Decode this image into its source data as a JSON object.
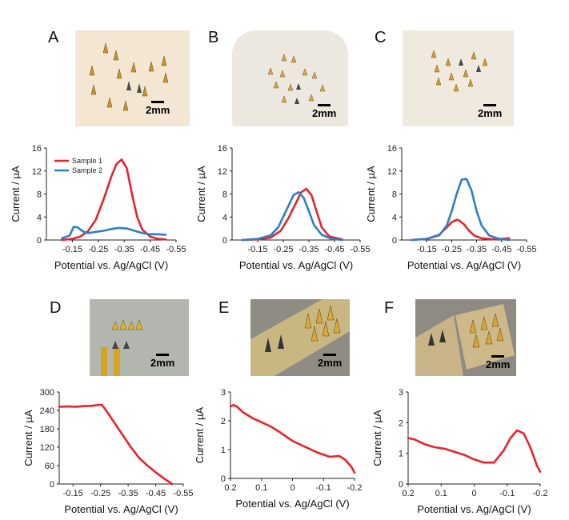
{
  "panels": {
    "A": {
      "letter": "A",
      "scale": "2mm"
    },
    "B": {
      "letter": "B",
      "scale": "2mm"
    },
    "C": {
      "letter": "C",
      "scale": "2mm"
    },
    "D": {
      "letter": "D",
      "scale": "2mm"
    },
    "E": {
      "letter": "E",
      "scale": "2mm"
    },
    "F": {
      "letter": "F",
      "scale": "2mm"
    }
  },
  "colors": {
    "sample1": "#e8232a",
    "sample2": "#2a7fc9"
  },
  "chart_data": [
    {
      "id": "A",
      "type": "line",
      "ylabel": "Current / µA",
      "xlabel": "Potential vs. Ag/AgCl (V)",
      "xlim": [
        -0.05,
        -0.55
      ],
      "ylim": [
        0,
        16
      ],
      "xticks": [
        "-0.15",
        "-0.25",
        "-0.35",
        "-0.45",
        "-0.55"
      ],
      "xtick_values": [
        -0.15,
        -0.25,
        -0.35,
        -0.45,
        -0.55
      ],
      "yticks": [
        "0",
        "4",
        "8",
        "12",
        "16"
      ],
      "ytick_values": [
        0,
        4,
        8,
        12,
        16
      ],
      "legend": [
        "Sample 1",
        "Sample 2"
      ],
      "series": [
        {
          "name": "Sample 1",
          "color": "#e8232a",
          "x": [
            -0.11,
            -0.15,
            -0.18,
            -0.21,
            -0.24,
            -0.27,
            -0.3,
            -0.32,
            -0.34,
            -0.36,
            -0.38,
            -0.4,
            -0.42,
            -0.45,
            -0.48,
            -0.51
          ],
          "y": [
            0,
            0.2,
            0.6,
            1.5,
            3.5,
            7,
            11,
            13.2,
            14,
            12.5,
            8,
            4,
            1.8,
            0.6,
            0.2,
            0.1
          ]
        },
        {
          "name": "Sample 2",
          "color": "#2a7fc9",
          "x": [
            -0.11,
            -0.14,
            -0.155,
            -0.17,
            -0.19,
            -0.21,
            -0.24,
            -0.27,
            -0.3,
            -0.33,
            -0.36,
            -0.39,
            -0.42,
            -0.45,
            -0.48,
            -0.51
          ],
          "y": [
            0.3,
            0.8,
            2.3,
            2.2,
            1.5,
            1.2,
            1.4,
            1.6,
            1.9,
            2.1,
            2.0,
            1.6,
            1.2,
            1.0,
            1.0,
            0.9
          ]
        }
      ]
    },
    {
      "id": "B",
      "type": "line",
      "ylabel": "Current / µA",
      "xlabel": "Potential vs. Ag/AgCl (V)",
      "xlim": [
        -0.05,
        -0.55
      ],
      "ylim": [
        0,
        16
      ],
      "xticks": [
        "-0.15",
        "-0.25",
        "-0.35",
        "-0.45",
        "-0.55"
      ],
      "xtick_values": [
        -0.15,
        -0.25,
        -0.35,
        -0.45,
        -0.55
      ],
      "yticks": [
        "0",
        "4",
        "8",
        "12",
        "16"
      ],
      "ytick_values": [
        0,
        4,
        8,
        12,
        16
      ],
      "series": [
        {
          "name": "Sample 1",
          "color": "#e8232a",
          "x": [
            -0.09,
            -0.15,
            -0.2,
            -0.24,
            -0.27,
            -0.3,
            -0.32,
            -0.34,
            -0.36,
            -0.38,
            -0.4,
            -0.43,
            -0.48
          ],
          "y": [
            0,
            0.1,
            0.4,
            1.6,
            3.8,
            6.5,
            8.3,
            8.9,
            7.8,
            5,
            2.2,
            0.6,
            0.1
          ]
        },
        {
          "name": "Sample 2",
          "color": "#2a7fc9",
          "x": [
            -0.09,
            -0.15,
            -0.2,
            -0.23,
            -0.26,
            -0.29,
            -0.31,
            -0.33,
            -0.35,
            -0.37,
            -0.4,
            -0.44,
            -0.48
          ],
          "y": [
            0,
            0.2,
            0.8,
            2.2,
            5,
            7.8,
            8.3,
            7.3,
            5,
            2.6,
            0.9,
            0.2,
            0
          ]
        }
      ]
    },
    {
      "id": "C",
      "type": "line",
      "ylabel": "Current / µA",
      "xlabel": "Potential vs. Ag/AgCl (V)",
      "xlim": [
        -0.05,
        -0.55
      ],
      "ylim": [
        0,
        16
      ],
      "xticks": [
        "-0.15",
        "-0.25",
        "-0.35",
        "-0.45",
        "-0.55"
      ],
      "xtick_values": [
        -0.15,
        -0.25,
        -0.35,
        -0.45,
        -0.55
      ],
      "yticks": [
        "0",
        "4",
        "8",
        "12",
        "16"
      ],
      "ytick_values": [
        0,
        4,
        8,
        12,
        16
      ],
      "series": [
        {
          "name": "Sample 1",
          "color": "#e8232a",
          "x": [
            -0.09,
            -0.15,
            -0.2,
            -0.23,
            -0.25,
            -0.27,
            -0.28,
            -0.3,
            -0.32,
            -0.34,
            -0.37,
            -0.42,
            -0.48
          ],
          "y": [
            0,
            0.2,
            0.9,
            2.2,
            3.1,
            3.5,
            3.4,
            2.7,
            1.6,
            0.8,
            0.3,
            0.1,
            0.3
          ]
        },
        {
          "name": "Sample 2",
          "color": "#2a7fc9",
          "x": [
            -0.09,
            -0.15,
            -0.2,
            -0.23,
            -0.25,
            -0.27,
            -0.29,
            -0.31,
            -0.33,
            -0.35,
            -0.37,
            -0.4,
            -0.44,
            -0.48
          ],
          "y": [
            0,
            0.2,
            0.8,
            2.5,
            5,
            8,
            10.5,
            10.6,
            8.5,
            5,
            2.5,
            0.8,
            0.2,
            0
          ]
        }
      ]
    },
    {
      "id": "D",
      "type": "line",
      "ylabel": "Current / µA",
      "xlabel": "Potential vs. Ag/AgCl (V)",
      "xlim": [
        -0.1,
        -0.55
      ],
      "ylim": [
        0,
        300
      ],
      "xticks": [
        "-0.15",
        "-0.25",
        "-0.35",
        "-0.45",
        "-0.55"
      ],
      "xtick_values": [
        -0.15,
        -0.25,
        -0.35,
        -0.45,
        -0.55
      ],
      "yticks": [
        "0",
        "60",
        "120",
        "180",
        "240",
        "300"
      ],
      "ytick_values": [
        0,
        60,
        120,
        180,
        240,
        300
      ],
      "series": [
        {
          "name": "",
          "color": "#e8232a",
          "x": [
            -0.1,
            -0.13,
            -0.16,
            -0.19,
            -0.22,
            -0.24,
            -0.255,
            -0.27,
            -0.3,
            -0.33,
            -0.36,
            -0.39,
            -0.42,
            -0.45,
            -0.48,
            -0.51
          ],
          "y": [
            252,
            253,
            252,
            254,
            255,
            258,
            258,
            240,
            200,
            160,
            120,
            85,
            60,
            38,
            18,
            0
          ]
        }
      ]
    },
    {
      "id": "E",
      "type": "line",
      "ylabel": "Current / µA",
      "xlabel": "Potential vs. Ag/AgCl (V)",
      "xlim": [
        0.2,
        -0.2
      ],
      "ylim": [
        0,
        3
      ],
      "xticks": [
        "0.2",
        "0.1",
        "0",
        "-0.1",
        "-0.2"
      ],
      "xtick_values": [
        0.2,
        0.1,
        0,
        -0.1,
        -0.2
      ],
      "yticks": [
        "0",
        "1",
        "2",
        "3"
      ],
      "ytick_values": [
        0,
        1,
        2,
        3
      ],
      "series": [
        {
          "name": "",
          "color": "#e8232a",
          "x": [
            0.2,
            0.19,
            0.18,
            0.16,
            0.13,
            0.1,
            0.07,
            0.04,
            0.0,
            -0.04,
            -0.08,
            -0.12,
            -0.15,
            -0.17,
            -0.19,
            -0.2
          ],
          "y": [
            2.5,
            2.55,
            2.5,
            2.3,
            2.1,
            1.95,
            1.8,
            1.6,
            1.3,
            1.1,
            0.9,
            0.75,
            0.78,
            0.65,
            0.4,
            0.2
          ]
        }
      ]
    },
    {
      "id": "F",
      "type": "line",
      "ylabel": "Current / µA",
      "xlabel": "Potential vs. Ag/AgCl (V)",
      "xlim": [
        0.2,
        -0.2
      ],
      "ylim": [
        0,
        3
      ],
      "xticks": [
        "0.2",
        "0.1",
        "0",
        "-0.1",
        "-0.2"
      ],
      "xtick_values": [
        0.2,
        0.1,
        0,
        -0.1,
        -0.2
      ],
      "yticks": [
        "0",
        "1",
        "2",
        "3"
      ],
      "ytick_values": [
        0,
        1,
        2,
        3
      ],
      "series": [
        {
          "name": "",
          "color": "#e8232a",
          "x": [
            0.2,
            0.18,
            0.15,
            0.12,
            0.09,
            0.06,
            0.03,
            0.0,
            -0.03,
            -0.06,
            -0.09,
            -0.11,
            -0.13,
            -0.15,
            -0.17,
            -0.19,
            -0.2
          ],
          "y": [
            1.5,
            1.45,
            1.3,
            1.2,
            1.15,
            1.05,
            0.95,
            0.8,
            0.7,
            0.7,
            1.1,
            1.5,
            1.75,
            1.65,
            1.2,
            0.6,
            0.4
          ]
        }
      ]
    }
  ]
}
